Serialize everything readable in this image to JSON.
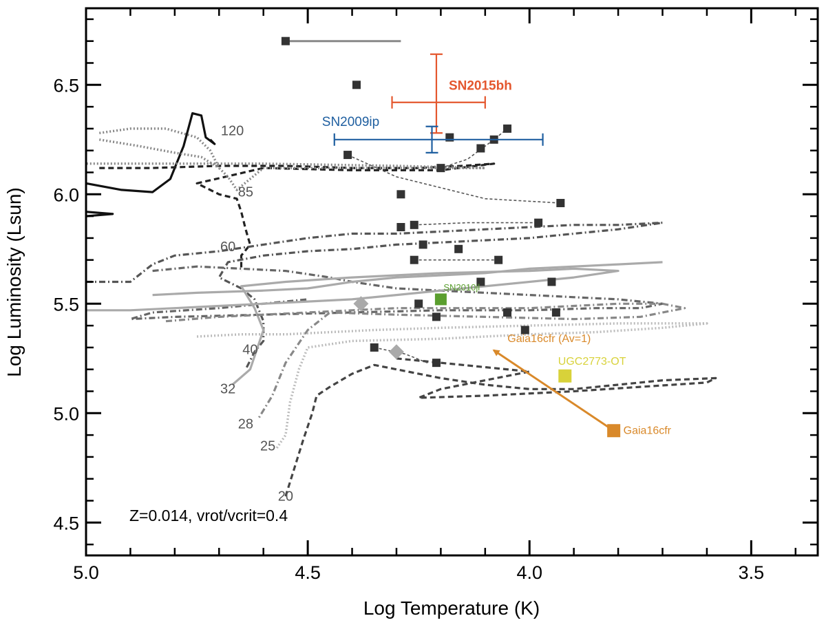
{
  "chart_data": {
    "type": "scatter",
    "xlabel": "Log Temperature (K)",
    "ylabel": "Log Luminosity (Lsun)",
    "xlim": [
      5.0,
      3.35
    ],
    "ylim": [
      4.35,
      6.85
    ],
    "x_inverted": true,
    "xticks": [
      "5.0",
      "4.5",
      "4.0",
      "3.5"
    ],
    "yticks": [
      "4.5",
      "5.0",
      "5.5",
      "6.0",
      "6.5"
    ],
    "annotation": "Z=0.014, vrot/vcrit=0.4",
    "track_mass_labels": [
      {
        "text": "120",
        "x": 4.67,
        "y": 6.27
      },
      {
        "text": "85",
        "x": 4.64,
        "y": 5.99
      },
      {
        "text": "60",
        "x": 4.68,
        "y": 5.74
      },
      {
        "text": "40",
        "x": 4.63,
        "y": 5.27
      },
      {
        "text": "32",
        "x": 4.68,
        "y": 5.09
      },
      {
        "text": "28",
        "x": 4.64,
        "y": 4.93
      },
      {
        "text": "25",
        "x": 4.59,
        "y": 4.83
      },
      {
        "text": "20",
        "x": 4.55,
        "y": 4.6
      }
    ],
    "evolutionary_tracks": [
      {
        "mass": "120",
        "style": "solid",
        "color": "#111111",
        "points": [
          [
            5.0,
            6.05
          ],
          [
            4.92,
            6.02
          ],
          [
            4.85,
            6.01
          ],
          [
            4.81,
            6.07
          ],
          [
            4.78,
            6.22
          ],
          [
            4.76,
            6.37
          ],
          [
            4.74,
            6.36
          ],
          [
            4.73,
            6.26
          ],
          [
            4.71,
            6.23
          ],
          [
            4.72,
            6.25
          ]
        ]
      },
      {
        "mass": "120b",
        "style": "solid",
        "color": "#111111",
        "points": [
          [
            5.0,
            5.92
          ],
          [
            4.94,
            5.91
          ],
          [
            5.0,
            5.9
          ]
        ]
      },
      {
        "mass": "85",
        "style": "dashed",
        "color": "#222222",
        "points": [
          [
            4.97,
            6.12
          ],
          [
            4.85,
            6.12
          ],
          [
            4.7,
            6.13
          ],
          [
            4.55,
            6.13
          ],
          [
            4.4,
            6.12
          ],
          [
            4.25,
            6.12
          ],
          [
            4.15,
            6.13
          ],
          [
            4.08,
            6.14
          ],
          [
            4.2,
            6.11
          ],
          [
            4.4,
            6.11
          ],
          [
            4.6,
            6.12
          ],
          [
            4.75,
            6.05
          ],
          [
            4.7,
            6.0
          ],
          [
            4.66,
            5.98
          ],
          [
            4.65,
            5.92
          ],
          [
            4.64,
            5.84
          ],
          [
            4.63,
            5.77
          ],
          [
            4.65,
            5.72
          ],
          [
            4.65,
            5.65
          ]
        ]
      },
      {
        "mass": "120d",
        "style": "dotted",
        "color": "#888888",
        "points": [
          [
            4.97,
            6.28
          ],
          [
            4.9,
            6.3
          ],
          [
            4.82,
            6.3
          ],
          [
            4.75,
            6.26
          ],
          [
            4.72,
            6.2
          ],
          [
            4.7,
            6.12
          ],
          [
            4.68,
            6.08
          ],
          [
            4.66,
            6.02
          ],
          [
            4.6,
            6.12
          ],
          [
            4.5,
            6.12
          ],
          [
            4.3,
            6.12
          ],
          [
            4.1,
            6.12
          ],
          [
            4.3,
            6.13
          ],
          [
            4.6,
            6.14
          ],
          [
            4.9,
            6.14
          ],
          [
            5.0,
            6.14
          ]
        ]
      },
      {
        "mass": "85b",
        "style": "dotted",
        "color": "#888888",
        "points": [
          [
            4.97,
            6.25
          ],
          [
            4.88,
            6.22
          ],
          [
            4.8,
            6.19
          ],
          [
            4.74,
            6.17
          ],
          [
            4.7,
            6.12
          ]
        ]
      },
      {
        "mass": "60",
        "style": "dashdot",
        "color": "#555555",
        "points": [
          [
            5.0,
            5.6
          ],
          [
            4.9,
            5.6
          ],
          [
            4.85,
            5.68
          ],
          [
            4.8,
            5.72
          ],
          [
            4.7,
            5.74
          ],
          [
            4.6,
            5.77
          ],
          [
            4.5,
            5.8
          ],
          [
            4.4,
            5.82
          ],
          [
            4.3,
            5.82
          ],
          [
            4.2,
            5.83
          ],
          [
            4.1,
            5.84
          ],
          [
            4.0,
            5.85
          ],
          [
            3.9,
            5.86
          ],
          [
            3.8,
            5.86
          ],
          [
            3.7,
            5.87
          ],
          [
            3.8,
            5.84
          ],
          [
            3.9,
            5.82
          ],
          [
            4.0,
            5.8
          ],
          [
            4.1,
            5.79
          ],
          [
            4.2,
            5.78
          ],
          [
            4.3,
            5.77
          ],
          [
            4.4,
            5.75
          ],
          [
            4.5,
            5.74
          ],
          [
            4.6,
            5.72
          ],
          [
            4.68,
            5.69
          ],
          [
            4.7,
            5.62
          ],
          [
            4.65,
            5.57
          ],
          [
            4.62,
            5.52
          ],
          [
            4.6,
            5.42
          ],
          [
            4.6,
            5.33
          ],
          [
            4.62,
            5.28
          ],
          [
            4.64,
            5.2
          ]
        ]
      },
      {
        "mass": "40",
        "style": "dashdot",
        "color": "#666666",
        "points": [
          [
            4.85,
            5.65
          ],
          [
            4.75,
            5.67
          ],
          [
            4.65,
            5.66
          ],
          [
            4.55,
            5.65
          ],
          [
            4.45,
            5.62
          ],
          [
            4.4,
            5.6
          ],
          [
            4.3,
            5.57
          ],
          [
            4.2,
            5.56
          ],
          [
            4.1,
            5.55
          ],
          [
            4.0,
            5.54
          ],
          [
            3.9,
            5.53
          ],
          [
            3.8,
            5.52
          ],
          [
            3.7,
            5.5
          ],
          [
            3.75,
            5.48
          ],
          [
            3.85,
            5.48
          ],
          [
            4.0,
            5.47
          ],
          [
            4.2,
            5.47
          ],
          [
            4.4,
            5.46
          ],
          [
            4.6,
            5.45
          ],
          [
            4.8,
            5.44
          ],
          [
            4.9,
            5.43
          ],
          [
            4.85,
            5.46
          ],
          [
            4.7,
            5.48
          ],
          [
            4.6,
            5.5
          ],
          [
            4.5,
            5.52
          ]
        ]
      },
      {
        "mass": "32",
        "style": "solid",
        "color": "#aaaaaa",
        "points": [
          [
            5.0,
            5.47
          ],
          [
            4.9,
            5.47
          ],
          [
            4.8,
            5.48
          ],
          [
            4.7,
            5.49
          ],
          [
            4.6,
            5.5
          ],
          [
            4.5,
            5.51
          ],
          [
            4.4,
            5.52
          ],
          [
            4.3,
            5.54
          ],
          [
            4.2,
            5.56
          ],
          [
            4.1,
            5.58
          ],
          [
            4.0,
            5.6
          ],
          [
            3.9,
            5.62
          ],
          [
            3.8,
            5.65
          ],
          [
            3.9,
            5.66
          ],
          [
            4.0,
            5.65
          ],
          [
            4.2,
            5.64
          ],
          [
            4.4,
            5.62
          ],
          [
            4.55,
            5.6
          ],
          [
            4.65,
            5.58
          ],
          [
            4.62,
            5.48
          ],
          [
            4.6,
            5.38
          ],
          [
            4.63,
            5.2
          ],
          [
            4.67,
            5.13
          ]
        ]
      },
      {
        "mass": "32b",
        "style": "solid",
        "color": "#aaaaaa",
        "points": [
          [
            4.85,
            5.54
          ],
          [
            4.75,
            5.55
          ],
          [
            4.6,
            5.56
          ],
          [
            4.5,
            5.57
          ],
          [
            4.4,
            5.6
          ],
          [
            4.3,
            5.62
          ],
          [
            4.2,
            5.63
          ],
          [
            4.1,
            5.64
          ],
          [
            4.0,
            5.66
          ],
          [
            3.9,
            5.67
          ],
          [
            3.8,
            5.68
          ],
          [
            3.7,
            5.69
          ]
        ]
      },
      {
        "mass": "28",
        "style": "dashdot",
        "color": "#888888",
        "points": [
          [
            4.82,
            5.42
          ],
          [
            4.7,
            5.44
          ],
          [
            4.6,
            5.45
          ],
          [
            4.5,
            5.46
          ],
          [
            4.4,
            5.47
          ],
          [
            4.3,
            5.48
          ],
          [
            4.2,
            5.48
          ],
          [
            4.0,
            5.48
          ],
          [
            3.9,
            5.49
          ],
          [
            3.8,
            5.5
          ],
          [
            3.7,
            5.5
          ],
          [
            3.65,
            5.48
          ],
          [
            3.75,
            5.44
          ],
          [
            3.9,
            5.43
          ],
          [
            4.1,
            5.44
          ],
          [
            4.3,
            5.45
          ],
          [
            4.45,
            5.46
          ],
          [
            4.5,
            5.38
          ],
          [
            4.55,
            5.23
          ],
          [
            4.58,
            5.08
          ],
          [
            4.61,
            4.98
          ]
        ]
      },
      {
        "mass": "25",
        "style": "dotted",
        "color": "#bbbbbb",
        "points": [
          [
            4.75,
            5.35
          ],
          [
            4.65,
            5.36
          ],
          [
            4.55,
            5.36
          ],
          [
            4.45,
            5.37
          ],
          [
            4.35,
            5.38
          ],
          [
            4.2,
            5.39
          ],
          [
            4.0,
            5.4
          ],
          [
            3.8,
            5.41
          ],
          [
            3.6,
            5.41
          ],
          [
            3.7,
            5.39
          ],
          [
            3.85,
            5.37
          ],
          [
            4.0,
            5.36
          ],
          [
            4.2,
            5.34
          ],
          [
            4.4,
            5.33
          ],
          [
            4.5,
            5.3
          ],
          [
            4.52,
            5.2
          ],
          [
            4.54,
            5.05
          ],
          [
            4.55,
            4.9
          ],
          [
            4.57,
            4.84
          ]
        ]
      },
      {
        "mass": "20",
        "style": "dashed",
        "color": "#444444",
        "points": [
          [
            4.55,
            4.62
          ],
          [
            4.53,
            4.75
          ],
          [
            4.51,
            4.88
          ],
          [
            4.49,
            5.0
          ],
          [
            4.48,
            5.08
          ],
          [
            4.45,
            5.12
          ],
          [
            4.4,
            5.18
          ],
          [
            4.35,
            5.22
          ],
          [
            4.2,
            5.16
          ],
          [
            4.1,
            5.13
          ],
          [
            4.0,
            5.11
          ],
          [
            3.9,
            5.11
          ],
          [
            3.8,
            5.13
          ],
          [
            3.7,
            5.15
          ],
          [
            3.58,
            5.16
          ],
          [
            3.6,
            5.14
          ],
          [
            3.75,
            5.12
          ],
          [
            3.9,
            5.1
          ],
          [
            4.1,
            5.08
          ],
          [
            4.25,
            5.07
          ],
          [
            4.2,
            5.11
          ],
          [
            4.1,
            5.15
          ],
          [
            4.0,
            5.19
          ],
          [
            4.15,
            5.22
          ],
          [
            4.3,
            5.25
          ]
        ]
      }
    ],
    "rsg_like_sequence": [
      {
        "x": 4.55,
        "y": 6.7
      },
      {
        "x": 4.39,
        "y": 6.5
      },
      {
        "x": 4.41,
        "y": 6.18
      },
      {
        "x": 4.18,
        "y": 6.26
      },
      {
        "x": 4.05,
        "y": 6.3
      },
      {
        "x": 4.08,
        "y": 6.25
      },
      {
        "x": 4.11,
        "y": 6.21
      },
      {
        "x": 4.2,
        "y": 6.12
      },
      {
        "x": 4.29,
        "y": 6.0
      },
      {
        "x": 3.93,
        "y": 5.96
      },
      {
        "x": 4.26,
        "y": 5.86
      },
      {
        "x": 4.24,
        "y": 5.77
      },
      {
        "x": 4.16,
        "y": 5.75
      },
      {
        "x": 4.26,
        "y": 5.7
      },
      {
        "x": 4.07,
        "y": 5.7
      },
      {
        "x": 4.29,
        "y": 5.85
      },
      {
        "x": 3.98,
        "y": 5.87
      },
      {
        "x": 4.11,
        "y": 5.6
      },
      {
        "x": 3.95,
        "y": 5.6
      },
      {
        "x": 4.25,
        "y": 5.5
      },
      {
        "x": 4.21,
        "y": 5.44
      },
      {
        "x": 4.05,
        "y": 5.46
      },
      {
        "x": 3.94,
        "y": 5.46
      },
      {
        "x": 4.01,
        "y": 5.38
      },
      {
        "x": 4.35,
        "y": 5.3
      },
      {
        "x": 4.21,
        "y": 5.23
      }
    ],
    "sequence_connectors": [
      [
        [
          4.41,
          6.18
        ],
        [
          4.3,
          6.08
        ],
        [
          4.22,
          6.04
        ],
        [
          4.1,
          5.98
        ],
        [
          3.93,
          5.96
        ]
      ],
      [
        [
          4.2,
          6.12
        ],
        [
          4.14,
          6.16
        ],
        [
          4.08,
          6.25
        ],
        [
          4.05,
          6.3
        ]
      ],
      [
        [
          4.26,
          5.86
        ],
        [
          4.14,
          5.87
        ],
        [
          3.98,
          5.87
        ]
      ],
      [
        [
          4.26,
          5.7
        ],
        [
          4.07,
          5.7
        ]
      ],
      [
        [
          4.35,
          5.3
        ],
        [
          4.28,
          5.27
        ],
        [
          4.23,
          5.23
        ]
      ]
    ],
    "sn_points": [
      {
        "name": "SN2015bh",
        "x": 4.21,
        "y": 6.42,
        "xerr": [
          4.31,
          4.1
        ],
        "yerr": [
          6.28,
          6.64
        ],
        "color": "#e4572e"
      },
      {
        "name": "SN2009ip",
        "x": 4.22,
        "y": 6.25,
        "xerr": [
          4.44,
          3.97
        ],
        "yerr": [
          6.19,
          6.31
        ],
        "color": "#1f5fa0"
      }
    ],
    "special_points": [
      {
        "name": "SN2010jl",
        "x": 4.2,
        "y": 5.52,
        "color": "#5a9e2e"
      },
      {
        "name": "UGC2773-OT",
        "x": 3.92,
        "y": 5.17,
        "color": "#d8d23a"
      },
      {
        "name": "Gaia16cfr",
        "x": 3.81,
        "y": 4.92,
        "color": "#d9892a"
      },
      {
        "name": "Gaia16cfr (Av=1)",
        "x": 4.09,
        "y": 5.3,
        "color": "#d9892a"
      }
    ],
    "diamonds": [
      {
        "x": 4.38,
        "y": 5.5,
        "color": "#aaaaaa"
      },
      {
        "x": 4.3,
        "y": 5.28,
        "color": "#aaaaaa"
      }
    ],
    "hline_segment": {
      "x1": 4.55,
      "x2": 4.29,
      "y": 6.7,
      "color": "#888888"
    }
  }
}
